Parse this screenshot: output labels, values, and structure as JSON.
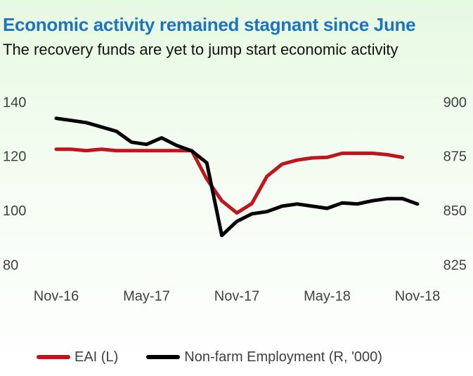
{
  "header": {
    "title": "Economic activity remained stagnant since June",
    "subtitle": "The recovery funds are yet to jump start economic activity"
  },
  "colors": {
    "title": "#1e73be",
    "series_eai": "#c0141f",
    "series_nfe": "#000000"
  },
  "chart_data": {
    "type": "line",
    "title": "Economic activity remained stagnant since June",
    "subtitle": "The recovery funds are yet to jump start economic activity",
    "x_tick_labels": [
      "Nov-16",
      "May-17",
      "Nov-17",
      "May-18",
      "Nov-18"
    ],
    "x": [
      "Nov-16",
      "Dec-16",
      "Jan-17",
      "Feb-17",
      "Mar-17",
      "Apr-17",
      "May-17",
      "Jun-17",
      "Jul-17",
      "Aug-17",
      "Sep-17",
      "Oct-17",
      "Nov-17",
      "Dec-17",
      "Jan-18",
      "Feb-18",
      "Mar-18",
      "Apr-18",
      "May-18",
      "Jun-18",
      "Jul-18",
      "Aug-18",
      "Sep-18",
      "Oct-18",
      "Nov-18"
    ],
    "y_left": {
      "lim": [
        80,
        140
      ],
      "ticks": [
        "80",
        "100",
        "120",
        "140"
      ]
    },
    "y_right": {
      "lim": [
        825,
        900
      ],
      "ticks": [
        "825",
        "850",
        "875",
        "900"
      ]
    },
    "grid": false,
    "legend_position": "bottom",
    "series": [
      {
        "name": "EAI (L)",
        "axis": "left",
        "color": "#c0141f",
        "values": [
          123,
          123,
          122.5,
          123,
          122.5,
          122.5,
          122.5,
          122.5,
          122.5,
          122.5,
          112,
          104,
          99.5,
          103,
          113,
          117.5,
          119,
          119.8,
          120,
          121.5,
          121.5,
          121.5,
          121,
          120,
          null
        ]
      },
      {
        "name": "Non-farm Employment (R, '000)",
        "axis": "right",
        "color": "#000000",
        "values": [
          893,
          892,
          891,
          889,
          887,
          882,
          881,
          884,
          880.5,
          878,
          872.5,
          839,
          845.5,
          849,
          850,
          852.5,
          853.5,
          852.5,
          851.5,
          854,
          853.5,
          855,
          856,
          856,
          853.5
        ]
      }
    ]
  },
  "legend": {
    "items": [
      {
        "label": "EAI (L)",
        "color": "#c0141f"
      },
      {
        "label": "Non-farm Employment (R, '000)",
        "color": "#000000"
      }
    ]
  }
}
